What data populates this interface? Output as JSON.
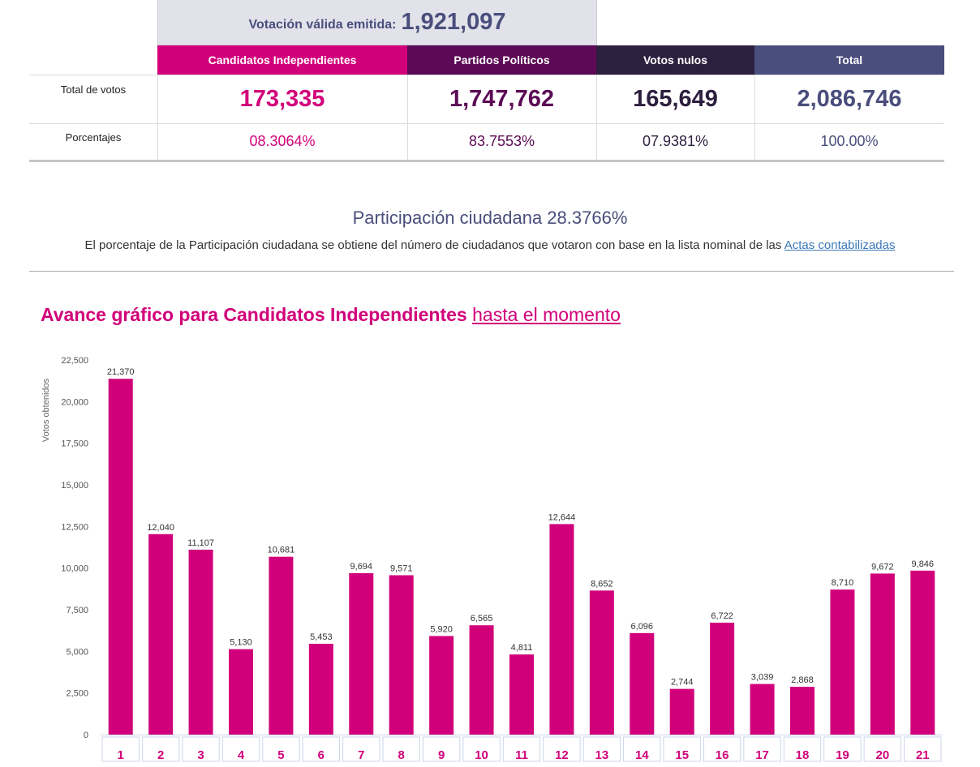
{
  "summary": {
    "valid_label": "Votación válida emitida:",
    "valid_value": "1,921,097"
  },
  "table": {
    "headers": [
      "Candidatos Independientes",
      "Partidos Políticos",
      "Votos nulos",
      "Total"
    ],
    "row_total_label": "Total de votos",
    "totals": [
      "173,335",
      "1,747,762",
      "165,649",
      "2,086,746"
    ],
    "row_pct_label": "Porcentajes",
    "percentages": [
      "08.3064%",
      "83.7553%",
      "07.9381%",
      "100.00%"
    ]
  },
  "participation": {
    "title": "Participación ciudadana 28.3766%",
    "note": "El porcentaje de la Participación ciudadana se obtiene del número de ciudadanos que votaron con base en la lista nominal de las",
    "link": "Actas contabilizadas"
  },
  "chart_heading": {
    "bold": "Avance gráfico para Candidatos Independientes",
    "link": "hasta el momento"
  },
  "colors": {
    "independientes": "#d1007a",
    "partidos": "#5c0a55",
    "nulos": "#2d1f3e",
    "total": "#4a4e7c"
  },
  "chart_data": {
    "type": "bar",
    "categories": [
      "1",
      "2",
      "3",
      "4",
      "5",
      "6",
      "7",
      "8",
      "9",
      "10",
      "11",
      "12",
      "13",
      "14",
      "15",
      "16",
      "17",
      "18",
      "19",
      "20",
      "21"
    ],
    "values": [
      21370,
      12040,
      11107,
      5130,
      10681,
      5453,
      9694,
      9571,
      5920,
      6565,
      4811,
      12644,
      8652,
      6096,
      2744,
      6722,
      3039,
      2868,
      8710,
      9672,
      9846
    ],
    "value_labels": [
      "21,370",
      "12,040",
      "11,107",
      "5,130",
      "10,681",
      "5,453",
      "9,694",
      "9,571",
      "5,920",
      "6,565",
      "4,811",
      "12,644",
      "8,652",
      "6,096",
      "2,744",
      "6,722",
      "3,039",
      "2,868",
      "8,710",
      "9,672",
      "9,846"
    ],
    "ylabel": "Votos obtenidos",
    "ylim": [
      0,
      22500
    ],
    "yticks": [
      0,
      2500,
      5000,
      7500,
      10000,
      12500,
      15000,
      17500,
      20000,
      22500
    ],
    "ytick_labels": [
      "0",
      "2,500",
      "5,000",
      "7,500",
      "10,000",
      "12,500",
      "15,000",
      "17,500",
      "20,000",
      "22,500"
    ],
    "bar_color": "#d1007a"
  }
}
